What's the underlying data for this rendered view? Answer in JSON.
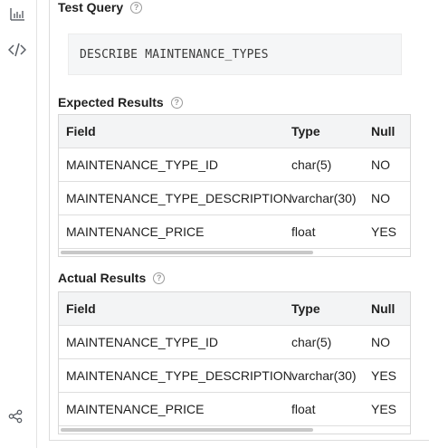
{
  "sidebar": {
    "icons": [
      "bar-chart-icon",
      "code-icon",
      "share-icon"
    ]
  },
  "test_query": {
    "title": "Test Query",
    "help_glyph": "?",
    "query": "DESCRIBE MAINTENANCE_TYPES"
  },
  "expected": {
    "title": "Expected Results",
    "help_glyph": "?",
    "headers": [
      "Field",
      "Type",
      "Null"
    ],
    "rows": [
      [
        "MAINTENANCE_TYPE_ID",
        "char(5)",
        "NO"
      ],
      [
        "MAINTENANCE_TYPE_DESCRIPTION",
        "varchar(30)",
        "NO"
      ],
      [
        "MAINTENANCE_PRICE",
        "float",
        "YES"
      ]
    ]
  },
  "actual": {
    "title": "Actual Results",
    "help_glyph": "?",
    "headers": [
      "Field",
      "Type",
      "Null"
    ],
    "rows": [
      [
        "MAINTENANCE_TYPE_ID",
        "char(5)",
        "NO"
      ],
      [
        "MAINTENANCE_TYPE_DESCRIPTION",
        "varchar(30)",
        "YES"
      ],
      [
        "MAINTENANCE_PRICE",
        "float",
        "YES"
      ]
    ]
  }
}
